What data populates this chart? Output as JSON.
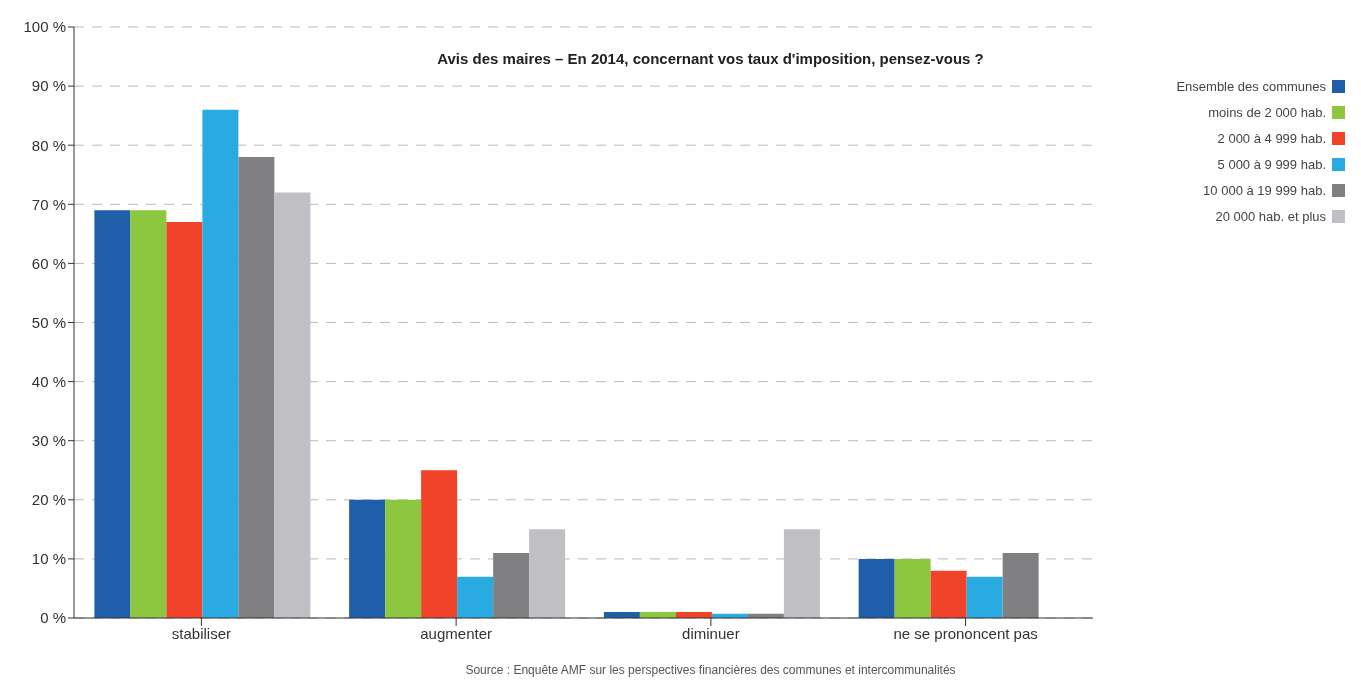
{
  "chart_data": {
    "type": "bar",
    "title": "Avis des maires – En 2014, concernant vos taux d'imposition, pensez-vous ?",
    "categories": [
      "stabiliser",
      "augmenter",
      "diminuer",
      "ne se prononcent pas"
    ],
    "series": [
      {
        "name": "Ensemble des communes",
        "color": "#1f5ea8",
        "values": [
          69,
          20,
          1,
          10
        ]
      },
      {
        "name": "moins de 2 000 hab.",
        "color": "#8dc63f",
        "values": [
          69,
          20,
          1,
          10
        ]
      },
      {
        "name": "2 000 à 4 999 hab.",
        "color": "#f0432a",
        "values": [
          67,
          25,
          1,
          8
        ]
      },
      {
        "name": "5 000 à 9 999 hab.",
        "color": "#29abe2",
        "values": [
          86,
          7,
          0.7,
          7
        ]
      },
      {
        "name": "10 000 à 19 999 hab.",
        "color": "#808083",
        "values": [
          78,
          11,
          0.7,
          11
        ]
      },
      {
        "name": "20 000 hab. et plus",
        "color": "#c0c0c4",
        "values": [
          72,
          15,
          15,
          null
        ]
      }
    ],
    "ylim": [
      0,
      100
    ],
    "yticks": [
      {
        "value": 0,
        "label": "0 %"
      },
      {
        "value": 10,
        "label": "10 %"
      },
      {
        "value": 20,
        "label": "20 %"
      },
      {
        "value": 30,
        "label": "30 %"
      },
      {
        "value": 40,
        "label": "40 %"
      },
      {
        "value": 50,
        "label": "50 %"
      },
      {
        "value": 60,
        "label": "60 %"
      },
      {
        "value": 70,
        "label": "70 %"
      },
      {
        "value": 80,
        "label": "80 %"
      },
      {
        "value": 90,
        "label": "90 %"
      },
      {
        "value": 100,
        "label": "100 %"
      }
    ],
    "grid": "y",
    "legend": "top right",
    "annotations": [
      "Source : Enquête AMF sur les perspectives financières des communes et intercommunalités"
    ]
  }
}
